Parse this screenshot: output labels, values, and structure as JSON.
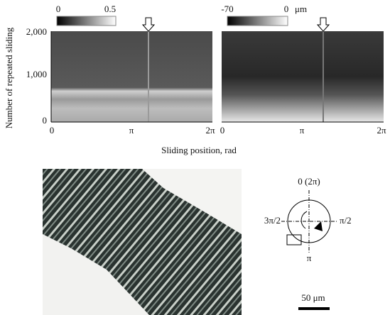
{
  "heatmaps": {
    "y_label": "Number of repeated sliding",
    "x_label": "Sliding position, rad",
    "yticks": [
      "2,000",
      "1,000",
      "0"
    ],
    "panels": [
      {
        "colorbar": {
          "min": "0",
          "max": "0.5"
        },
        "xticks": [
          "0",
          "π",
          "2π"
        ]
      },
      {
        "colorbar": {
          "min": "-70",
          "max": "0",
          "unit": "μm"
        },
        "xticks": [
          "0",
          "π",
          "2π"
        ]
      }
    ]
  },
  "diagram": {
    "top": "0 (2π)",
    "left": "3π/2",
    "right": "π/2",
    "bottom": "π"
  },
  "scale_bar": "50 μm"
}
